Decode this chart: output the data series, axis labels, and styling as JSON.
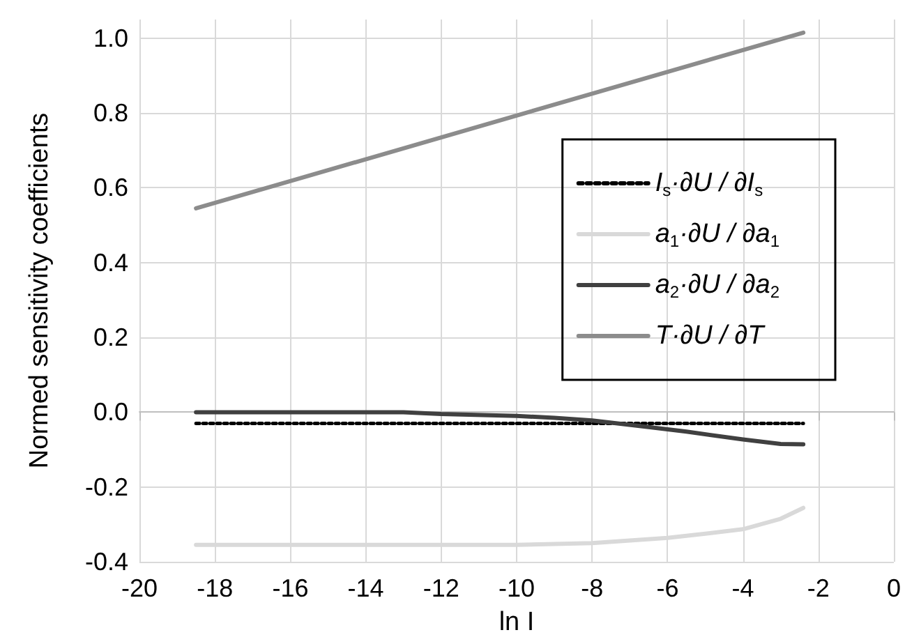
{
  "chart_data": {
    "type": "line",
    "xlabel": "ln I",
    "ylabel": "Normed sensitivity coefficients",
    "xlim": [
      -20,
      0
    ],
    "xticks": [
      -20,
      -18,
      -16,
      -14,
      -12,
      -10,
      -8,
      -6,
      -4,
      -2,
      0
    ],
    "ylim": [
      -0.4,
      1.05
    ],
    "yticks": [
      {
        "value": -0.4,
        "label": "-0.4"
      },
      {
        "value": -0.2,
        "label": "-0.2"
      },
      {
        "value": 0,
        "label": "0.0"
      },
      {
        "value": 0.2,
        "label": "0.2"
      },
      {
        "value": 0.4,
        "label": "0.4"
      },
      {
        "value": 0.6,
        "label": "0.6"
      },
      {
        "value": 0.8,
        "label": "0.8"
      },
      {
        "value": 1,
        "label": "1.0"
      }
    ],
    "grid": true,
    "legend": "top right",
    "marker": "none",
    "series": [
      {
        "name": "I$_{s}$·∂U / ∂I$_{s}$",
        "color": "#000000",
        "line_style": "dotted",
        "x": [
          -18.5,
          -14,
          -10,
          -6,
          -2.4
        ],
        "values": [
          -0.03,
          -0.03,
          -0.03,
          -0.03,
          -0.03
        ]
      },
      {
        "name": "a$_{1}$·∂U / ∂a$_{1}$",
        "color": "#d9d9d9",
        "line_style": "solid",
        "x": [
          -18.5,
          -14,
          -10,
          -8,
          -6,
          -5,
          -4,
          -3,
          -2.4
        ],
        "values": [
          -0.355,
          -0.355,
          -0.355,
          -0.35,
          -0.336,
          -0.325,
          -0.313,
          -0.285,
          -0.256
        ]
      },
      {
        "name": "a$_{2}$·∂U / ∂a$_{2}$",
        "color": "#404040",
        "line_style": "solid",
        "x": [
          -18.5,
          -13,
          -12,
          -10,
          -9,
          -8,
          -6.5,
          -5.5,
          -4,
          -3,
          -2.4
        ],
        "values": [
          0.0,
          0.0,
          -0.005,
          -0.01,
          -0.015,
          -0.022,
          -0.04,
          -0.052,
          -0.073,
          -0.085,
          -0.086
        ]
      },
      {
        "name": "T·∂U / ∂T",
        "color": "#8c8c8c",
        "line_style": "solid",
        "x": [
          -18.5,
          -2.4
        ],
        "values": [
          0.545,
          1.015
        ]
      }
    ]
  }
}
